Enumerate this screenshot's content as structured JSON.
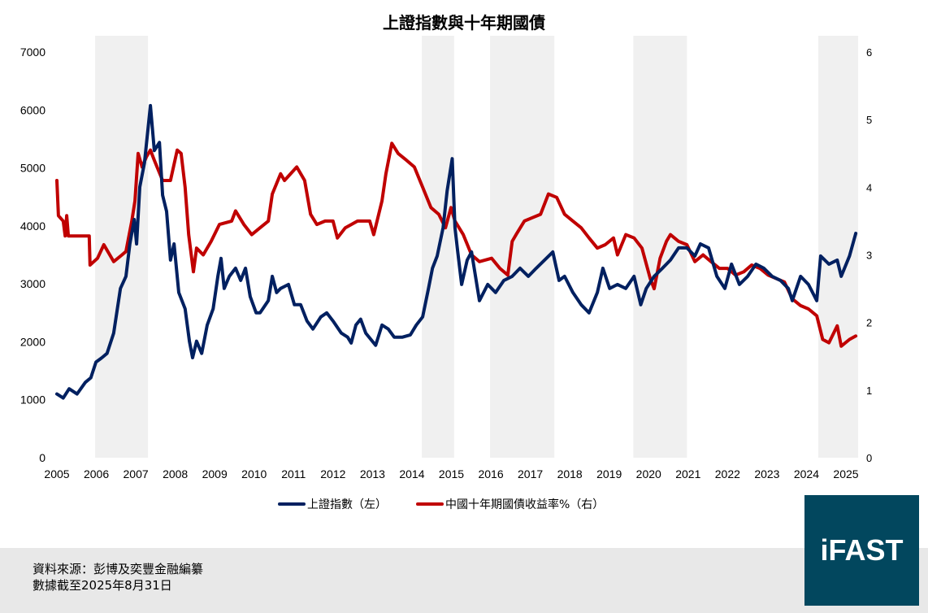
{
  "title": "上證指數與十年期國債",
  "legend": {
    "sse": "上證指數（左）",
    "yield": "中國十年期國債收益率%（右）"
  },
  "footer": {
    "source": "資料來源：彭博及奕豐金融編纂",
    "date": "數據截至2025年8月31日"
  },
  "logo": "iFAST",
  "colors": {
    "sse": "#002060",
    "yield": "#c00000",
    "band": "#f0f0f0",
    "footer": "#e8e8e8",
    "logo": "#02475e"
  },
  "chart_data": {
    "type": "line",
    "title": "上證指數與十年期國債",
    "x_tick_labels": [
      "2005",
      "2006",
      "2007",
      "2008",
      "2009",
      "2010",
      "2011",
      "2012",
      "2013",
      "2014",
      "2015",
      "2016",
      "2017",
      "2018",
      "2019",
      "2020",
      "2021",
      "2022",
      "2023",
      "2024",
      "2025"
    ],
    "y_left": {
      "ticks": [
        0,
        1000,
        2000,
        3000,
        4000,
        5000,
        6000,
        7000
      ],
      "range": [
        0,
        7000
      ]
    },
    "y_right": {
      "ticks": [
        0,
        1,
        2,
        3,
        4,
        5,
        6
      ],
      "range": [
        0,
        6
      ]
    },
    "grid": false,
    "legend_position": "bottom",
    "shaded_periods": [
      [
        2006.4,
        2007.74
      ],
      [
        2014.68,
        2015.5
      ],
      [
        2016.41,
        2018.04
      ],
      [
        2020.04,
        2021.4
      ],
      [
        2024.73,
        2025.74
      ]
    ],
    "series": [
      {
        "name": "上證指數（左）",
        "axis": "left",
        "points": [
          [
            2005.43,
            1100
          ],
          [
            2005.59,
            1030
          ],
          [
            2005.74,
            1190
          ],
          [
            2005.94,
            1100
          ],
          [
            2006.15,
            1300
          ],
          [
            2006.29,
            1380
          ],
          [
            2006.42,
            1650
          ],
          [
            2006.56,
            1720
          ],
          [
            2006.7,
            1800
          ],
          [
            2006.87,
            2150
          ],
          [
            2007.04,
            2920
          ],
          [
            2007.18,
            3130
          ],
          [
            2007.28,
            3690
          ],
          [
            2007.39,
            4110
          ],
          [
            2007.45,
            3690
          ],
          [
            2007.53,
            4670
          ],
          [
            2007.65,
            5090
          ],
          [
            2007.8,
            6075
          ],
          [
            2007.9,
            5300
          ],
          [
            2008.03,
            5440
          ],
          [
            2008.11,
            4530
          ],
          [
            2008.21,
            4250
          ],
          [
            2008.31,
            3410
          ],
          [
            2008.4,
            3690
          ],
          [
            2008.52,
            2850
          ],
          [
            2008.68,
            2570
          ],
          [
            2008.79,
            2010
          ],
          [
            2008.87,
            1725
          ],
          [
            2008.97,
            2010
          ],
          [
            2009.1,
            1800
          ],
          [
            2009.24,
            2290
          ],
          [
            2009.39,
            2570
          ],
          [
            2009.51,
            3130
          ],
          [
            2009.59,
            3440
          ],
          [
            2009.67,
            2920
          ],
          [
            2009.8,
            3130
          ],
          [
            2009.96,
            3270
          ],
          [
            2010.09,
            3060
          ],
          [
            2010.21,
            3270
          ],
          [
            2010.33,
            2780
          ],
          [
            2010.48,
            2500
          ],
          [
            2010.58,
            2500
          ],
          [
            2010.79,
            2710
          ],
          [
            2010.89,
            3130
          ],
          [
            2011.0,
            2850
          ],
          [
            2011.1,
            2920
          ],
          [
            2011.3,
            2990
          ],
          [
            2011.45,
            2640
          ],
          [
            2011.61,
            2640
          ],
          [
            2011.77,
            2360
          ],
          [
            2011.92,
            2220
          ],
          [
            2012.12,
            2430
          ],
          [
            2012.27,
            2500
          ],
          [
            2012.43,
            2360
          ],
          [
            2012.64,
            2150
          ],
          [
            2012.8,
            2080
          ],
          [
            2012.89,
            1980
          ],
          [
            2013.01,
            2290
          ],
          [
            2013.13,
            2390
          ],
          [
            2013.26,
            2150
          ],
          [
            2013.51,
            1940
          ],
          [
            2013.67,
            2290
          ],
          [
            2013.83,
            2220
          ],
          [
            2013.98,
            2080
          ],
          [
            2014.19,
            2080
          ],
          [
            2014.39,
            2120
          ],
          [
            2014.54,
            2290
          ],
          [
            2014.7,
            2430
          ],
          [
            2014.85,
            2920
          ],
          [
            2014.95,
            3270
          ],
          [
            2015.07,
            3480
          ],
          [
            2015.22,
            3970
          ],
          [
            2015.32,
            4600
          ],
          [
            2015.45,
            5160
          ],
          [
            2015.52,
            3970
          ],
          [
            2015.59,
            3550
          ],
          [
            2015.69,
            2990
          ],
          [
            2015.83,
            3410
          ],
          [
            2015.94,
            3550
          ],
          [
            2016.14,
            2710
          ],
          [
            2016.35,
            2990
          ],
          [
            2016.55,
            2850
          ],
          [
            2016.76,
            3060
          ],
          [
            2016.97,
            3130
          ],
          [
            2017.17,
            3270
          ],
          [
            2017.38,
            3130
          ],
          [
            2017.58,
            3270
          ],
          [
            2017.79,
            3410
          ],
          [
            2018.0,
            3550
          ],
          [
            2018.16,
            3060
          ],
          [
            2018.3,
            3130
          ],
          [
            2018.51,
            2850
          ],
          [
            2018.72,
            2640
          ],
          [
            2018.92,
            2500
          ],
          [
            2019.13,
            2850
          ],
          [
            2019.27,
            3270
          ],
          [
            2019.44,
            2920
          ],
          [
            2019.64,
            2990
          ],
          [
            2019.85,
            2920
          ],
          [
            2020.06,
            3130
          ],
          [
            2020.23,
            2640
          ],
          [
            2020.37,
            2920
          ],
          [
            2020.57,
            3130
          ],
          [
            2020.78,
            3270
          ],
          [
            2020.98,
            3410
          ],
          [
            2021.19,
            3620
          ],
          [
            2021.4,
            3620
          ],
          [
            2021.6,
            3480
          ],
          [
            2021.74,
            3690
          ],
          [
            2021.95,
            3620
          ],
          [
            2022.16,
            3130
          ],
          [
            2022.36,
            2920
          ],
          [
            2022.53,
            3340
          ],
          [
            2022.73,
            2990
          ],
          [
            2022.94,
            3130
          ],
          [
            2023.15,
            3340
          ],
          [
            2023.35,
            3270
          ],
          [
            2023.56,
            3130
          ],
          [
            2023.77,
            3060
          ],
          [
            2023.97,
            2920
          ],
          [
            2024.07,
            2710
          ],
          [
            2024.28,
            3130
          ],
          [
            2024.48,
            2990
          ],
          [
            2024.69,
            2710
          ],
          [
            2024.79,
            3480
          ],
          [
            2025.0,
            3340
          ],
          [
            2025.21,
            3410
          ],
          [
            2025.31,
            3130
          ],
          [
            2025.52,
            3480
          ],
          [
            2025.68,
            3870
          ]
        ]
      },
      {
        "name": "中國十年期國債收益率%（右）",
        "axis": "right",
        "points": [
          [
            2005.43,
            4.1
          ],
          [
            2005.47,
            3.58
          ],
          [
            2005.59,
            3.5
          ],
          [
            2005.64,
            3.28
          ],
          [
            2005.68,
            3.58
          ],
          [
            2005.72,
            3.28
          ],
          [
            2006.25,
            3.28
          ],
          [
            2006.27,
            2.85
          ],
          [
            2006.46,
            2.95
          ],
          [
            2006.62,
            3.15
          ],
          [
            2006.77,
            3.0
          ],
          [
            2006.87,
            2.9
          ],
          [
            2007.08,
            3.0
          ],
          [
            2007.18,
            3.05
          ],
          [
            2007.33,
            3.5
          ],
          [
            2007.41,
            3.8
          ],
          [
            2007.49,
            4.5
          ],
          [
            2007.59,
            4.3
          ],
          [
            2007.7,
            4.45
          ],
          [
            2007.8,
            4.55
          ],
          [
            2007.9,
            4.4
          ],
          [
            2008.11,
            4.1
          ],
          [
            2008.31,
            4.1
          ],
          [
            2008.48,
            4.55
          ],
          [
            2008.58,
            4.5
          ],
          [
            2008.68,
            4.0
          ],
          [
            2008.77,
            3.3
          ],
          [
            2008.89,
            2.75
          ],
          [
            2008.97,
            3.1
          ],
          [
            2009.14,
            3.0
          ],
          [
            2009.34,
            3.2
          ],
          [
            2009.55,
            3.45
          ],
          [
            2009.86,
            3.5
          ],
          [
            2009.96,
            3.65
          ],
          [
            2010.17,
            3.45
          ],
          [
            2010.37,
            3.3
          ],
          [
            2010.58,
            3.4
          ],
          [
            2010.79,
            3.5
          ],
          [
            2010.89,
            3.9
          ],
          [
            2011.1,
            4.2
          ],
          [
            2011.2,
            4.1
          ],
          [
            2011.51,
            4.3
          ],
          [
            2011.71,
            4.1
          ],
          [
            2011.86,
            3.6
          ],
          [
            2012.02,
            3.45
          ],
          [
            2012.23,
            3.5
          ],
          [
            2012.43,
            3.5
          ],
          [
            2012.54,
            3.25
          ],
          [
            2012.74,
            3.4
          ],
          [
            2013.05,
            3.5
          ],
          [
            2013.36,
            3.5
          ],
          [
            2013.46,
            3.3
          ],
          [
            2013.67,
            3.8
          ],
          [
            2013.77,
            4.2
          ],
          [
            2013.92,
            4.65
          ],
          [
            2014.08,
            4.5
          ],
          [
            2014.29,
            4.4
          ],
          [
            2014.49,
            4.3
          ],
          [
            2014.7,
            4.0
          ],
          [
            2014.91,
            3.7
          ],
          [
            2015.11,
            3.6
          ],
          [
            2015.28,
            3.4
          ],
          [
            2015.42,
            3.7
          ],
          [
            2015.52,
            3.5
          ],
          [
            2015.73,
            3.3
          ],
          [
            2015.94,
            3.0
          ],
          [
            2016.14,
            2.9
          ],
          [
            2016.45,
            2.95
          ],
          [
            2016.66,
            2.8
          ],
          [
            2016.86,
            2.7
          ],
          [
            2016.97,
            3.2
          ],
          [
            2017.07,
            3.3
          ],
          [
            2017.28,
            3.5
          ],
          [
            2017.48,
            3.55
          ],
          [
            2017.69,
            3.6
          ],
          [
            2017.89,
            3.9
          ],
          [
            2018.1,
            3.85
          ],
          [
            2018.3,
            3.6
          ],
          [
            2018.51,
            3.5
          ],
          [
            2018.72,
            3.4
          ],
          [
            2018.92,
            3.25
          ],
          [
            2019.13,
            3.1
          ],
          [
            2019.33,
            3.15
          ],
          [
            2019.54,
            3.25
          ],
          [
            2019.64,
            3.0
          ],
          [
            2019.85,
            3.3
          ],
          [
            2020.06,
            3.25
          ],
          [
            2020.26,
            3.1
          ],
          [
            2020.47,
            2.65
          ],
          [
            2020.57,
            2.5
          ],
          [
            2020.72,
            2.95
          ],
          [
            2020.88,
            3.2
          ],
          [
            2020.98,
            3.3
          ],
          [
            2021.19,
            3.2
          ],
          [
            2021.4,
            3.15
          ],
          [
            2021.6,
            2.9
          ],
          [
            2021.81,
            3.0
          ],
          [
            2022.01,
            2.9
          ],
          [
            2022.22,
            2.8
          ],
          [
            2022.43,
            2.8
          ],
          [
            2022.63,
            2.7
          ],
          [
            2022.84,
            2.75
          ],
          [
            2023.04,
            2.85
          ],
          [
            2023.25,
            2.8
          ],
          [
            2023.46,
            2.7
          ],
          [
            2023.66,
            2.65
          ],
          [
            2023.87,
            2.6
          ],
          [
            2024.07,
            2.35
          ],
          [
            2024.28,
            2.25
          ],
          [
            2024.48,
            2.2
          ],
          [
            2024.69,
            2.1
          ],
          [
            2024.84,
            1.75
          ],
          [
            2025.0,
            1.7
          ],
          [
            2025.21,
            1.95
          ],
          [
            2025.31,
            1.65
          ],
          [
            2025.52,
            1.75
          ],
          [
            2025.68,
            1.8
          ]
        ]
      }
    ]
  }
}
